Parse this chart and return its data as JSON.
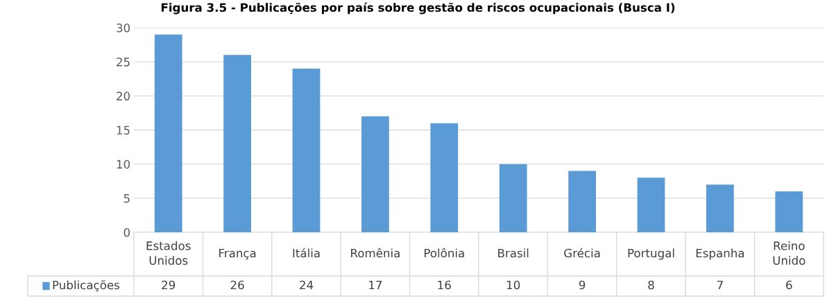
{
  "chart_data": {
    "type": "bar",
    "title": "Figura 3.5 - Publicações por país sobre gestão de riscos ocupacionais (Busca I)",
    "categories": [
      "Estados\nUnidos",
      "França",
      "Itália",
      "Romênia",
      "Polônia",
      "Brasil",
      "Grécia",
      "Portugal",
      "Espanha",
      "Reino\nUnido"
    ],
    "series": [
      {
        "name": "Publicações",
        "color": "#5b9bd5",
        "values": [
          29,
          26,
          24,
          17,
          16,
          10,
          9,
          8,
          7,
          6
        ]
      }
    ],
    "ylim": [
      0,
      30
    ],
    "yticks": [
      0,
      5,
      10,
      15,
      20,
      25,
      30
    ],
    "grid": "y",
    "data_labels": true,
    "legend": "bottom"
  }
}
